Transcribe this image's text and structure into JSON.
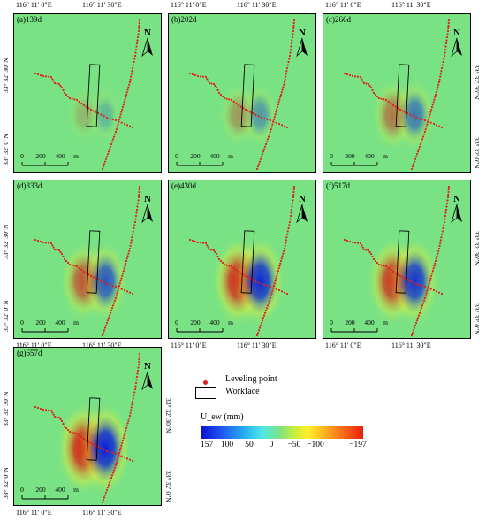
{
  "panels": [
    {
      "label": "(a)139d",
      "amplitude": 0.22
    },
    {
      "label": "(b)202d",
      "amplitude": 0.38
    },
    {
      "label": "(c)266d",
      "amplitude": 0.55
    },
    {
      "label": "(d)333d",
      "amplitude": 0.72
    },
    {
      "label": "(e)430d",
      "amplitude": 0.95
    },
    {
      "label": "(f)517d",
      "amplitude": 0.9
    },
    {
      "label": "(g)657d",
      "amplitude": 1.0
    }
  ],
  "axes": {
    "lon_ticks": [
      "116° 11′ 0″E",
      "116° 11′ 30″E"
    ],
    "lat_ticks": [
      "33° 32′ 30″N",
      "33° 32′ 0″N"
    ]
  },
  "scalebar": {
    "labels": [
      "0",
      "200",
      "400",
      "m"
    ]
  },
  "north_label": "N",
  "legend": {
    "leveling_point": "Leveling point",
    "workface": "Workface",
    "colorbar_title": "U_ew (mm)",
    "colorbar_ticks": [
      "157",
      "100",
      "50",
      "0",
      "−50",
      "−100",
      "−197"
    ]
  },
  "colors": {
    "background": "#79e285",
    "positive": "#0a1ed8",
    "negative": "#e11b0d",
    "leveling_point": "#e0201a"
  }
}
